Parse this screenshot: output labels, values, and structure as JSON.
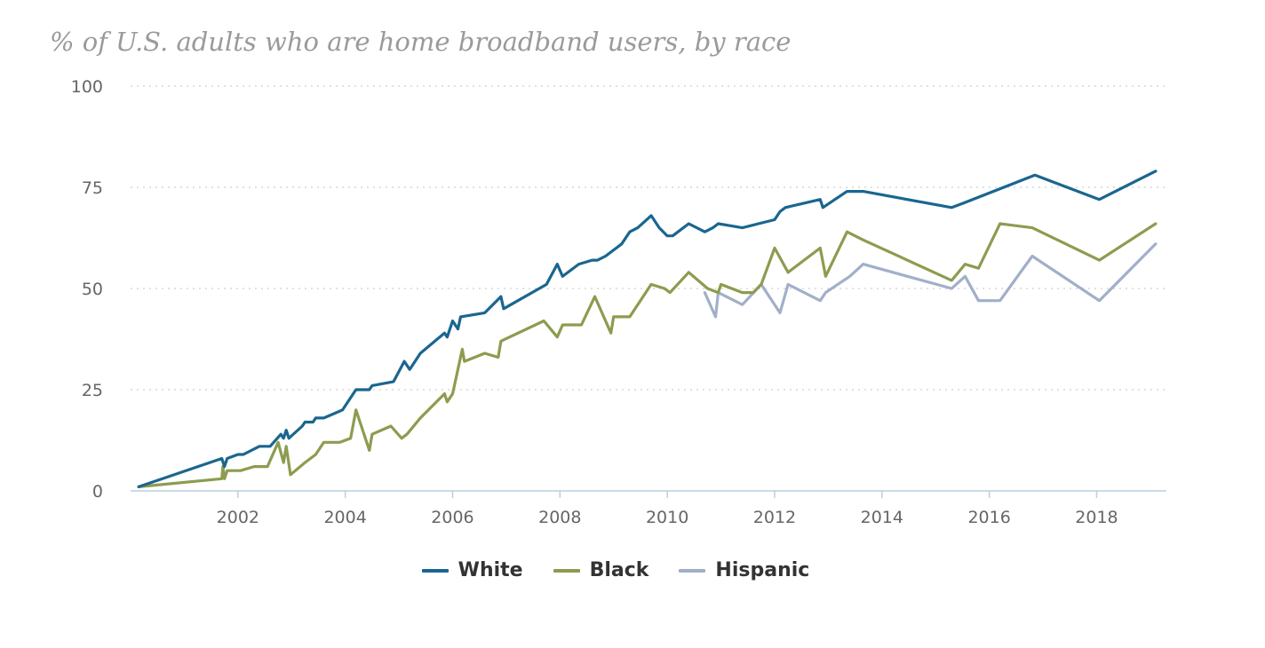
{
  "chart_data": {
    "type": "line",
    "title": "% of U.S. adults who are home broadband users, by race",
    "xlabel": "",
    "ylabel": "",
    "ylim": [
      0,
      100
    ],
    "xlim": [
      2000.0,
      2019.3
    ],
    "y_ticks": [
      0,
      25,
      50,
      75,
      100
    ],
    "y_tick_labels": [
      "0",
      "25",
      "50",
      "75",
      "100"
    ],
    "x_ticks": [
      2002,
      2004,
      2006,
      2008,
      2010,
      2012,
      2014,
      2016,
      2018
    ],
    "x_tick_labels": [
      "2002",
      "2004",
      "2006",
      "2008",
      "2010",
      "2012",
      "2014",
      "2016",
      "2018"
    ],
    "grid": true,
    "legend_position": "bottom-center",
    "series": [
      {
        "name": "White",
        "color": "#1a668f",
        "points": [
          [
            2000.15,
            1
          ],
          [
            2001.7,
            8
          ],
          [
            2001.75,
            6
          ],
          [
            2001.8,
            8
          ],
          [
            2002.0,
            9
          ],
          [
            2002.1,
            9
          ],
          [
            2002.4,
            11
          ],
          [
            2002.6,
            11
          ],
          [
            2002.8,
            14
          ],
          [
            2002.85,
            13
          ],
          [
            2002.9,
            15
          ],
          [
            2002.95,
            13
          ],
          [
            2003.2,
            16
          ],
          [
            2003.25,
            17
          ],
          [
            2003.4,
            17
          ],
          [
            2003.45,
            18
          ],
          [
            2003.6,
            18
          ],
          [
            2003.95,
            20
          ],
          [
            2004.2,
            25
          ],
          [
            2004.45,
            25
          ],
          [
            2004.5,
            26
          ],
          [
            2004.9,
            27
          ],
          [
            2005.1,
            32
          ],
          [
            2005.2,
            30
          ],
          [
            2005.4,
            34
          ],
          [
            2005.85,
            39
          ],
          [
            2005.9,
            38
          ],
          [
            2006.0,
            42
          ],
          [
            2006.1,
            40
          ],
          [
            2006.15,
            43
          ],
          [
            2006.6,
            44
          ],
          [
            2006.9,
            48
          ],
          [
            2006.95,
            45
          ],
          [
            2007.75,
            51
          ],
          [
            2007.95,
            56
          ],
          [
            2008.05,
            53
          ],
          [
            2008.35,
            56
          ],
          [
            2008.6,
            57
          ],
          [
            2008.7,
            57
          ],
          [
            2008.85,
            58
          ],
          [
            2008.95,
            59
          ],
          [
            2009.15,
            61
          ],
          [
            2009.3,
            64
          ],
          [
            2009.45,
            65
          ],
          [
            2009.7,
            68
          ],
          [
            2009.85,
            65
          ],
          [
            2010.0,
            63
          ],
          [
            2010.1,
            63
          ],
          [
            2010.4,
            66
          ],
          [
            2010.7,
            64
          ],
          [
            2010.85,
            65
          ],
          [
            2010.95,
            66
          ],
          [
            2011.4,
            65
          ],
          [
            2011.7,
            66
          ],
          [
            2012.0,
            67
          ],
          [
            2012.1,
            69
          ],
          [
            2012.2,
            70
          ],
          [
            2012.85,
            72
          ],
          [
            2012.9,
            70
          ],
          [
            2013.35,
            74
          ],
          [
            2013.65,
            74
          ],
          [
            2015.3,
            70
          ],
          [
            2015.5,
            71
          ],
          [
            2016.85,
            78
          ],
          [
            2018.05,
            72
          ],
          [
            2019.1,
            79
          ]
        ]
      },
      {
        "name": "Black",
        "color": "#8c9c4f",
        "points": [
          [
            2000.15,
            1
          ],
          [
            2001.7,
            3
          ],
          [
            2001.72,
            6
          ],
          [
            2001.75,
            3
          ],
          [
            2001.8,
            5
          ],
          [
            2002.05,
            5
          ],
          [
            2002.3,
            6
          ],
          [
            2002.55,
            6
          ],
          [
            2002.75,
            12
          ],
          [
            2002.85,
            7
          ],
          [
            2002.9,
            11
          ],
          [
            2002.98,
            4
          ],
          [
            2003.25,
            7
          ],
          [
            2003.45,
            9
          ],
          [
            2003.6,
            12
          ],
          [
            2003.9,
            12
          ],
          [
            2004.1,
            13
          ],
          [
            2004.2,
            20
          ],
          [
            2004.45,
            10
          ],
          [
            2004.5,
            14
          ],
          [
            2004.85,
            16
          ],
          [
            2005.05,
            13
          ],
          [
            2005.15,
            14
          ],
          [
            2005.4,
            18
          ],
          [
            2005.85,
            24
          ],
          [
            2005.9,
            22
          ],
          [
            2006.0,
            24
          ],
          [
            2006.18,
            35
          ],
          [
            2006.22,
            32
          ],
          [
            2006.6,
            34
          ],
          [
            2006.85,
            33
          ],
          [
            2006.9,
            37
          ],
          [
            2007.7,
            42
          ],
          [
            2007.95,
            38
          ],
          [
            2008.05,
            41
          ],
          [
            2008.4,
            41
          ],
          [
            2008.65,
            48
          ],
          [
            2008.95,
            39
          ],
          [
            2009.0,
            43
          ],
          [
            2009.3,
            43
          ],
          [
            2009.7,
            51
          ],
          [
            2009.95,
            50
          ],
          [
            2010.05,
            49
          ],
          [
            2010.4,
            54
          ],
          [
            2010.75,
            50
          ],
          [
            2010.95,
            49
          ],
          [
            2011.0,
            51
          ],
          [
            2011.4,
            49
          ],
          [
            2011.6,
            49
          ],
          [
            2011.75,
            51
          ],
          [
            2012.0,
            60
          ],
          [
            2012.25,
            54
          ],
          [
            2012.85,
            60
          ],
          [
            2012.95,
            53
          ],
          [
            2013.35,
            64
          ],
          [
            2013.65,
            62
          ],
          [
            2015.3,
            52
          ],
          [
            2015.55,
            56
          ],
          [
            2015.8,
            55
          ],
          [
            2016.2,
            66
          ],
          [
            2016.8,
            65
          ],
          [
            2018.05,
            57
          ],
          [
            2019.1,
            66
          ]
        ]
      },
      {
        "name": "Hispanic",
        "color": "#a1afc9",
        "points": [
          [
            2010.7,
            49
          ],
          [
            2010.9,
            43
          ],
          [
            2010.95,
            49
          ],
          [
            2011.4,
            46
          ],
          [
            2011.75,
            51
          ],
          [
            2012.1,
            44
          ],
          [
            2012.25,
            51
          ],
          [
            2012.85,
            47
          ],
          [
            2012.95,
            49
          ],
          [
            2013.4,
            53
          ],
          [
            2013.65,
            56
          ],
          [
            2015.3,
            50
          ],
          [
            2015.55,
            53
          ],
          [
            2015.8,
            47
          ],
          [
            2016.2,
            47
          ],
          [
            2016.8,
            58
          ],
          [
            2018.05,
            47
          ],
          [
            2019.1,
            61
          ]
        ]
      }
    ]
  }
}
